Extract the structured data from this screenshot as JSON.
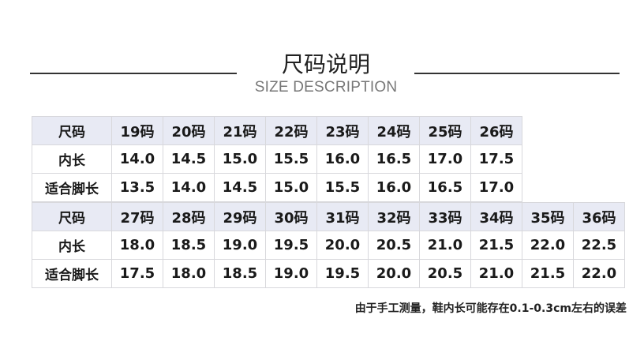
{
  "title": "尺码说明",
  "subtitle": "SIZE DESCRIPTION",
  "tables": [
    {
      "header_label": "尺码",
      "inner_label": "内长",
      "foot_label": "适合脚长",
      "sizes": [
        "19码",
        "20码",
        "21码",
        "22码",
        "23码",
        "24码",
        "25码",
        "26码"
      ],
      "inner": [
        "14.0",
        "14.5",
        "15.0",
        "15.5",
        "16.0",
        "16.5",
        "17.0",
        "17.5"
      ],
      "foot": [
        "13.5",
        "14.0",
        "14.5",
        "15.0",
        "15.5",
        "16.0",
        "16.5",
        "17.0"
      ]
    },
    {
      "header_label": "尺码",
      "inner_label": "内长",
      "foot_label": "适合脚长",
      "sizes": [
        "27码",
        "28码",
        "29码",
        "30码",
        "31码",
        "32码",
        "33码",
        "34码",
        "35码",
        "36码"
      ],
      "inner": [
        "18.0",
        "18.5",
        "19.0",
        "19.5",
        "20.0",
        "20.5",
        "21.0",
        "21.5",
        "22.0",
        "22.5"
      ],
      "foot": [
        "17.5",
        "18.0",
        "18.5",
        "19.0",
        "19.5",
        "20.0",
        "20.5",
        "21.0",
        "21.5",
        "22.0"
      ]
    }
  ],
  "note": "由于手工测量，鞋内长可能存在0.1-0.3cm左右的误差",
  "colors": {
    "header_bg": "#e8eaf4"
  }
}
